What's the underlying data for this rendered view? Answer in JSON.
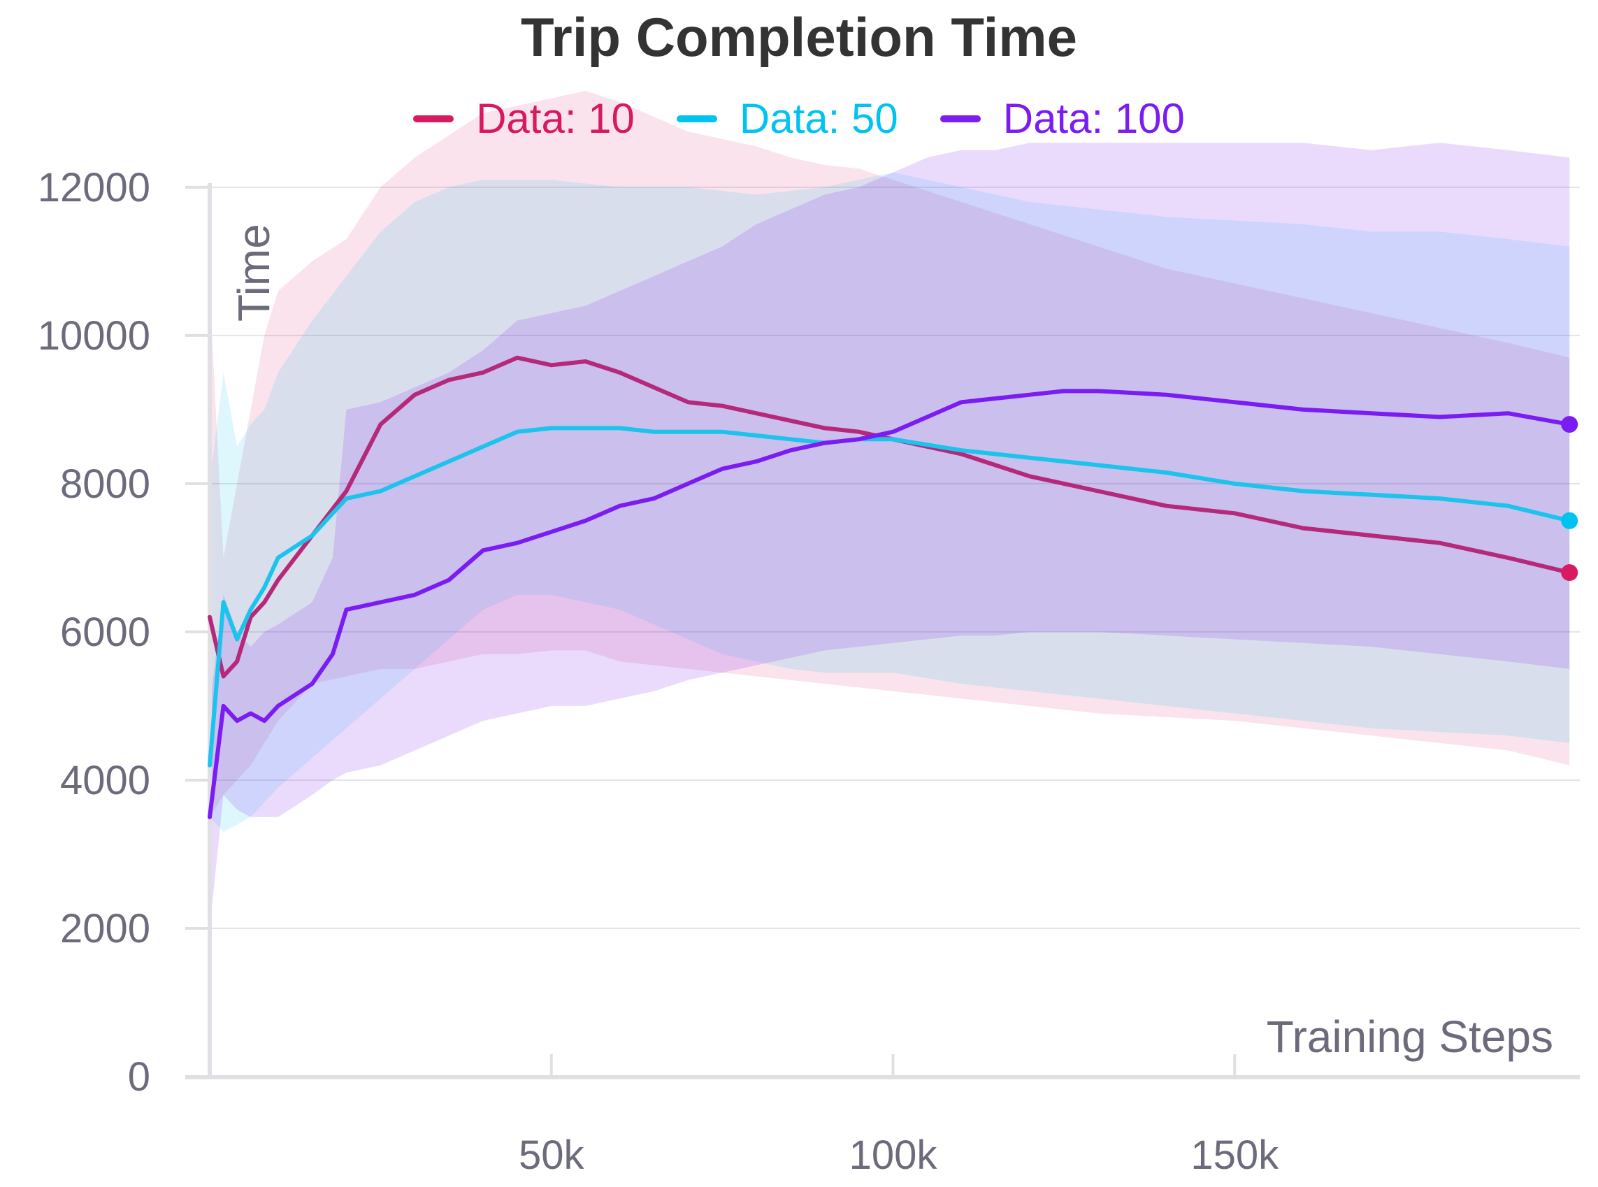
{
  "chart_data": {
    "type": "line",
    "title": "Trip Completion Time",
    "xlabel": "Training Steps",
    "ylabel": "Time",
    "xlim": [
      0,
      200000
    ],
    "ylim": [
      0,
      13300
    ],
    "x_ticks": [
      50000,
      100000,
      150000
    ],
    "x_tick_labels": [
      "50k",
      "100k",
      "150k"
    ],
    "y_ticks": [
      0,
      2000,
      4000,
      6000,
      8000,
      10000,
      12000
    ],
    "y_tick_labels": [
      "0",
      "2000",
      "4000",
      "6000",
      "8000",
      "10000",
      "12000"
    ],
    "grid": "horizontal",
    "legend_position": "top-center",
    "series": [
      {
        "name": "Data: 10",
        "color": "#d81b60",
        "line_color": "#b5287a",
        "x": [
          0,
          2000,
          4000,
          6000,
          8000,
          10000,
          15000,
          20000,
          25000,
          30000,
          35000,
          40000,
          45000,
          50000,
          55000,
          60000,
          65000,
          70000,
          75000,
          80000,
          85000,
          90000,
          95000,
          100000,
          110000,
          120000,
          130000,
          140000,
          150000,
          160000,
          170000,
          180000,
          190000,
          199000
        ],
        "y": [
          6200,
          5400,
          5600,
          6200,
          6400,
          6700,
          7300,
          7900,
          8800,
          9200,
          9400,
          9500,
          9700,
          9600,
          9650,
          9500,
          9300,
          9100,
          9050,
          8950,
          8850,
          8750,
          8700,
          8600,
          8400,
          8100,
          7900,
          7700,
          7600,
          7400,
          7300,
          7200,
          7000,
          6800
        ],
        "upper": [
          10600,
          7000,
          8000,
          9000,
          10000,
          10600,
          11000,
          11300,
          12000,
          12400,
          12700,
          13000,
          13100,
          13200,
          13300,
          13150,
          12950,
          12750,
          12650,
          12550,
          12400,
          12300,
          12250,
          12100,
          11800,
          11500,
          11200,
          10900,
          10700,
          10500,
          10300,
          10100,
          9900,
          9700
        ],
        "lower": [
          3500,
          3800,
          4000,
          4200,
          4500,
          4800,
          5300,
          5400,
          5500,
          5500,
          5600,
          5700,
          5700,
          5750,
          5750,
          5600,
          5550,
          5500,
          5450,
          5400,
          5350,
          5300,
          5250,
          5200,
          5100,
          5000,
          4900,
          4850,
          4800,
          4700,
          4600,
          4500,
          4400,
          4200
        ]
      },
      {
        "name": "Data: 50",
        "color": "#00c4ef",
        "line_color": "#1cc3ec",
        "x": [
          0,
          2000,
          4000,
          6000,
          8000,
          10000,
          15000,
          20000,
          25000,
          30000,
          35000,
          40000,
          45000,
          50000,
          55000,
          60000,
          65000,
          70000,
          75000,
          80000,
          85000,
          90000,
          95000,
          100000,
          110000,
          120000,
          130000,
          140000,
          150000,
          160000,
          170000,
          180000,
          190000,
          199000
        ],
        "y": [
          4200,
          6400,
          5900,
          6300,
          6600,
          7000,
          7300,
          7800,
          7900,
          8100,
          8300,
          8500,
          8700,
          8750,
          8750,
          8750,
          8700,
          8700,
          8700,
          8650,
          8600,
          8550,
          8600,
          8600,
          8450,
          8350,
          8250,
          8150,
          8000,
          7900,
          7850,
          7800,
          7700,
          7500
        ],
        "upper": [
          8000,
          9500,
          8500,
          8800,
          9000,
          9500,
          10200,
          10800,
          11400,
          11800,
          12000,
          12100,
          12100,
          12100,
          12050,
          12000,
          12000,
          12000,
          11950,
          11900,
          11950,
          12000,
          12100,
          12200,
          12000,
          11800,
          11700,
          11600,
          11550,
          11500,
          11400,
          11400,
          11300,
          11200
        ],
        "lower": [
          3500,
          3300,
          3400,
          3500,
          3700,
          3900,
          4300,
          4700,
          5100,
          5500,
          5900,
          6300,
          6500,
          6500,
          6400,
          6300,
          6100,
          5900,
          5700,
          5600,
          5500,
          5450,
          5450,
          5450,
          5300,
          5200,
          5100,
          5000,
          4900,
          4800,
          4700,
          4650,
          4600,
          4500
        ]
      },
      {
        "name": "Data: 100",
        "color": "#7a1cf2",
        "line_color": "#7a1cf2",
        "x": [
          0,
          2000,
          4000,
          6000,
          8000,
          10000,
          15000,
          18000,
          20000,
          25000,
          30000,
          35000,
          40000,
          45000,
          50000,
          55000,
          60000,
          65000,
          70000,
          75000,
          80000,
          85000,
          90000,
          95000,
          100000,
          105000,
          110000,
          115000,
          120000,
          125000,
          130000,
          140000,
          150000,
          160000,
          170000,
          180000,
          190000,
          199000
        ],
        "y": [
          3500,
          5000,
          4800,
          4900,
          4800,
          5000,
          5300,
          5700,
          6300,
          6400,
          6500,
          6700,
          7100,
          7200,
          7350,
          7500,
          7700,
          7800,
          8000,
          8200,
          8300,
          8450,
          8550,
          8600,
          8700,
          8900,
          9100,
          9150,
          9200,
          9250,
          9250,
          9200,
          9100,
          9000,
          8950,
          8900,
          8950,
          8800
        ],
        "upper": [
          5000,
          6500,
          6000,
          5800,
          6000,
          6100,
          6400,
          7000,
          9000,
          9100,
          9300,
          9500,
          9800,
          10200,
          10300,
          10400,
          10600,
          10800,
          11000,
          11200,
          11500,
          11700,
          11900,
          12000,
          12200,
          12400,
          12500,
          12500,
          12600,
          12600,
          12600,
          12600,
          12600,
          12600,
          12500,
          12600,
          12500,
          12400
        ],
        "lower": [
          2000,
          3800,
          3600,
          3500,
          3500,
          3500,
          3800,
          4000,
          4100,
          4200,
          4400,
          4600,
          4800,
          4900,
          5000,
          5000,
          5100,
          5200,
          5350,
          5450,
          5550,
          5650,
          5750,
          5800,
          5850,
          5900,
          5950,
          5950,
          6000,
          6000,
          6000,
          5950,
          5900,
          5850,
          5800,
          5700,
          5600,
          5500
        ]
      }
    ]
  }
}
